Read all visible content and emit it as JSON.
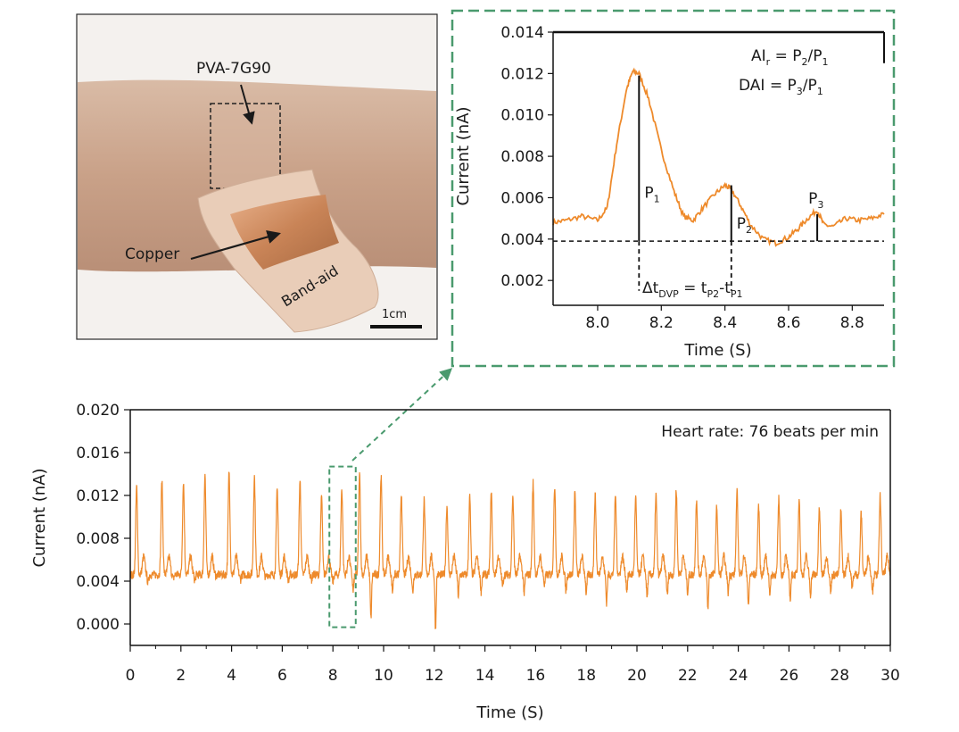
{
  "photo": {
    "labels": {
      "film": "PVA-7G90",
      "copper": "Copper",
      "bandaid": "Band-aid",
      "scale": "1cm"
    }
  },
  "colors": {
    "trace": "#ee8a2b",
    "inset_frame": "#4a9a6e",
    "axes": "#111111"
  },
  "chart_data": [
    {
      "id": "inset",
      "type": "line",
      "xlabel": "Time (S)",
      "ylabel": "Current (nA)",
      "xlim": [
        7.86,
        8.9
      ],
      "ylim": [
        0.0008,
        0.014
      ],
      "xticks": [
        8.0,
        8.2,
        8.4,
        8.6,
        8.8
      ],
      "yticks": [
        0.002,
        0.004,
        0.006,
        0.008,
        0.01,
        0.012,
        0.014
      ],
      "x": [
        7.86,
        7.9,
        7.95,
        8.0,
        8.03,
        8.06,
        8.09,
        8.11,
        8.13,
        8.16,
        8.2,
        8.24,
        8.27,
        8.3,
        8.33,
        8.37,
        8.4,
        8.42,
        8.45,
        8.48,
        8.52,
        8.56,
        8.6,
        8.63,
        8.66,
        8.69,
        8.71,
        8.74,
        8.78,
        8.82,
        8.86,
        8.9
      ],
      "y": [
        0.0048,
        0.0049,
        0.0051,
        0.0049,
        0.0055,
        0.0086,
        0.0112,
        0.0121,
        0.012,
        0.0108,
        0.0083,
        0.0063,
        0.0051,
        0.0049,
        0.0055,
        0.0062,
        0.0066,
        0.0064,
        0.0056,
        0.0047,
        0.004,
        0.0038,
        0.0041,
        0.0045,
        0.005,
        0.0054,
        0.0047,
        0.0046,
        0.005,
        0.0049,
        0.005,
        0.0052
      ],
      "baseline": 0.0039,
      "peaks": [
        {
          "label": "P",
          "sub": "1",
          "x": 8.13,
          "y": 0.0119
        },
        {
          "label": "P",
          "sub": "2",
          "x": 8.42,
          "y": 0.0066
        },
        {
          "label": "P",
          "sub": "3",
          "x": 8.69,
          "y": 0.0052
        }
      ],
      "annotations": {
        "air": {
          "lhs": "AI",
          "lhs_sub": "r",
          "eq": " = ",
          "rhs1": "P",
          "rhs1_sub": "2",
          "slash": "/",
          "rhs2": "P",
          "rhs2_sub": "1"
        },
        "dai": {
          "lhs": "DAI",
          "eq": " = ",
          "rhs1": "P",
          "rhs1_sub": "3",
          "slash": "/",
          "rhs2": "P",
          "rhs2_sub": "1"
        },
        "dt": {
          "delta": "Δt",
          "delta_sub": "DVP",
          "eq": " = ",
          "t1": "t",
          "t1_sub": "P2",
          "dash": "-",
          "t2": "t",
          "t2_sub": "P1"
        }
      }
    },
    {
      "id": "main",
      "type": "line",
      "xlabel": "Time (S)",
      "ylabel": "Current (nA)",
      "xlim": [
        0,
        30
      ],
      "ylim": [
        -0.002,
        0.02
      ],
      "xticks": [
        0,
        2,
        4,
        6,
        8,
        10,
        12,
        14,
        16,
        18,
        20,
        22,
        24,
        26,
        28,
        30
      ],
      "yticks": [
        0.0,
        0.004,
        0.008,
        0.012,
        0.016,
        0.02
      ],
      "annotation": "Heart rate: 76 beats per min",
      "heart_rate_bpm": 76,
      "peak_times": [
        0.25,
        1.25,
        2.1,
        2.95,
        3.9,
        4.9,
        5.8,
        6.7,
        7.55,
        8.35,
        9.05,
        9.9,
        10.7,
        11.6,
        12.5,
        13.4,
        14.25,
        15.1,
        15.9,
        16.75,
        17.55,
        18.35,
        19.15,
        19.95,
        20.75,
        21.55,
        22.35,
        23.15,
        23.95,
        24.8,
        25.6,
        26.4,
        27.2,
        28.05,
        28.85,
        29.6
      ],
      "peak_values": [
        0.0128,
        0.0133,
        0.0133,
        0.0139,
        0.0143,
        0.0138,
        0.0126,
        0.0134,
        0.012,
        0.0127,
        0.014,
        0.0139,
        0.0122,
        0.0116,
        0.011,
        0.0119,
        0.0122,
        0.012,
        0.0132,
        0.0128,
        0.0124,
        0.0121,
        0.0121,
        0.0118,
        0.0121,
        0.0126,
        0.0116,
        0.011,
        0.0123,
        0.0111,
        0.0117,
        0.0118,
        0.0108,
        0.0106,
        0.0104,
        0.012
      ],
      "trough_values": [
        0.0038,
        0.0042,
        0.004,
        0.0045,
        0.0041,
        0.0043,
        0.004,
        0.0041,
        0.0039,
        0.003,
        0.0005,
        0.003,
        0.0029,
        -0.0005,
        0.0026,
        0.003,
        0.0035,
        0.0028,
        0.0036,
        0.003,
        0.0028,
        0.002,
        0.0031,
        0.0024,
        0.0026,
        0.003,
        0.0014,
        0.0029,
        0.0015,
        0.0028,
        0.0023,
        0.0027,
        0.0029,
        0.0033,
        0.003,
        0.0025
      ]
    }
  ]
}
